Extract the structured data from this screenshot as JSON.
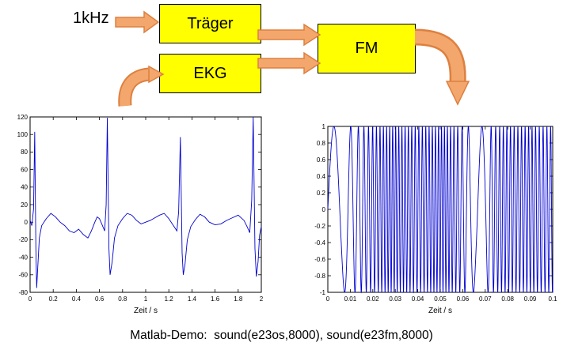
{
  "diagram": {
    "input_label": "1kHz",
    "carrier_box": {
      "label": "Träger"
    },
    "ekg_box": {
      "label": "EKG"
    },
    "fm_box": {
      "label": "FM"
    },
    "colors": {
      "box_fill": "#ffff00",
      "box_border": "#000000",
      "arrow_fill": "#f3a76d",
      "arrow_border": "#dd8040"
    }
  },
  "caption": {
    "text": "Matlab-Demo:  sound(e23os,8000), sound(e23fm,8000)"
  },
  "chart_data": [
    {
      "id": "ekg",
      "type": "line",
      "title": "",
      "xlabel": "Zeit / s",
      "ylabel": "",
      "xlim": [
        0,
        2
      ],
      "ylim": [
        -80,
        120
      ],
      "xticks": [
        0,
        0.2,
        0.4,
        0.6,
        0.8,
        1,
        1.2,
        1.4,
        1.6,
        1.8,
        2
      ],
      "yticks": [
        -80,
        -60,
        -40,
        -20,
        0,
        20,
        40,
        60,
        80,
        100,
        120
      ],
      "grid": false,
      "legend": null,
      "line_color": "#0000d0",
      "points": [
        [
          0,
          2
        ],
        [
          0.015,
          -4
        ],
        [
          0.03,
          15
        ],
        [
          0.04,
          103
        ],
        [
          0.05,
          -30
        ],
        [
          0.057,
          -75
        ],
        [
          0.067,
          -50
        ],
        [
          0.08,
          -18
        ],
        [
          0.1,
          -4
        ],
        [
          0.14,
          4
        ],
        [
          0.18,
          10
        ],
        [
          0.22,
          6
        ],
        [
          0.26,
          0
        ],
        [
          0.3,
          -4
        ],
        [
          0.34,
          -10
        ],
        [
          0.38,
          -12
        ],
        [
          0.42,
          -8
        ],
        [
          0.46,
          -14
        ],
        [
          0.5,
          -18
        ],
        [
          0.53,
          -10
        ],
        [
          0.56,
          0
        ],
        [
          0.58,
          6
        ],
        [
          0.6,
          4
        ],
        [
          0.62,
          -2
        ],
        [
          0.645,
          -10
        ],
        [
          0.658,
          20
        ],
        [
          0.668,
          119
        ],
        [
          0.682,
          -30
        ],
        [
          0.692,
          -60
        ],
        [
          0.71,
          -45
        ],
        [
          0.73,
          -18
        ],
        [
          0.76,
          -4
        ],
        [
          0.8,
          4
        ],
        [
          0.84,
          10
        ],
        [
          0.88,
          8
        ],
        [
          0.92,
          2
        ],
        [
          0.96,
          -2
        ],
        [
          1,
          0
        ],
        [
          1.04,
          2
        ],
        [
          1.08,
          5
        ],
        [
          1.12,
          8
        ],
        [
          1.16,
          10
        ],
        [
          1.2,
          4
        ],
        [
          1.24,
          -4
        ],
        [
          1.27,
          -10
        ],
        [
          1.285,
          12
        ],
        [
          1.3,
          97
        ],
        [
          1.315,
          -35
        ],
        [
          1.325,
          -60
        ],
        [
          1.34,
          -48
        ],
        [
          1.36,
          -20
        ],
        [
          1.39,
          -5
        ],
        [
          1.43,
          3
        ],
        [
          1.47,
          9
        ],
        [
          1.51,
          6
        ],
        [
          1.55,
          0
        ],
        [
          1.6,
          -3
        ],
        [
          1.65,
          -2
        ],
        [
          1.7,
          2
        ],
        [
          1.75,
          5
        ],
        [
          1.8,
          8
        ],
        [
          1.85,
          2
        ],
        [
          1.88,
          -6
        ],
        [
          1.9,
          -12
        ],
        [
          1.917,
          25
        ],
        [
          1.93,
          120
        ],
        [
          1.945,
          -30
        ],
        [
          1.957,
          -62
        ],
        [
          1.972,
          -45
        ],
        [
          1.985,
          -15
        ],
        [
          2,
          -5
        ]
      ]
    },
    {
      "id": "fm",
      "type": "line",
      "title": "",
      "xlabel": "Zeit / s",
      "ylabel": "",
      "xlim": [
        0,
        0.1
      ],
      "ylim": [
        -1,
        1
      ],
      "xticks": [
        0,
        0.01,
        0.02,
        0.03,
        0.04,
        0.05,
        0.06,
        0.07,
        0.08,
        0.09,
        0.1
      ],
      "yticks": [
        -1,
        -0.8,
        -0.6,
        -0.4,
        -0.2,
        0,
        0.2,
        0.4,
        0.6,
        0.8,
        1
      ],
      "grid": false,
      "legend": null,
      "line_color": "#0000d0",
      "signal": "fm_sine",
      "amplitude": 1,
      "fm_freq_profile_hz": [
        [
          0,
          90
        ],
        [
          0.006,
          100
        ],
        [
          0.01,
          220
        ],
        [
          0.014,
          380
        ],
        [
          0.018,
          520
        ],
        [
          0.022,
          620
        ],
        [
          0.028,
          760
        ],
        [
          0.034,
          700
        ],
        [
          0.04,
          620
        ],
        [
          0.046,
          700
        ],
        [
          0.052,
          780
        ],
        [
          0.058,
          560
        ],
        [
          0.062,
          300
        ],
        [
          0.066,
          110
        ],
        [
          0.07,
          160
        ],
        [
          0.073,
          480
        ],
        [
          0.078,
          640
        ],
        [
          0.084,
          600
        ],
        [
          0.09,
          660
        ],
        [
          0.095,
          580
        ],
        [
          0.1,
          620
        ]
      ]
    }
  ]
}
